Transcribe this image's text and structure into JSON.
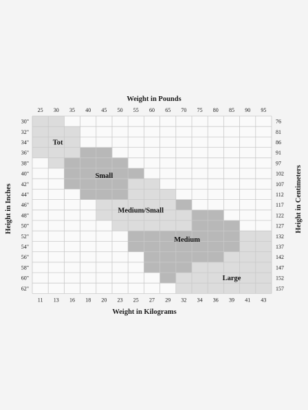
{
  "chart_data": {
    "type": "heatmap",
    "top_axis_title": "Weight in Pounds",
    "bottom_axis_title": "Weight in Kilograms",
    "left_axis_title": "Height in Inches",
    "right_axis_title": "Height in Centimeters",
    "pounds": [
      "25",
      "30",
      "35",
      "40",
      "45",
      "50",
      "55",
      "60",
      "65",
      "70",
      "75",
      "80",
      "85",
      "90",
      "95"
    ],
    "kilograms": [
      "11",
      "13",
      "16",
      "18",
      "20",
      "23",
      "25",
      "27",
      "29",
      "32",
      "34",
      "36",
      "39",
      "41",
      "43"
    ],
    "inches": [
      "30\"",
      "32\"",
      "34\"",
      "36\"",
      "38\"",
      "40\"",
      "42\"",
      "44\"",
      "46\"",
      "48\"",
      "50\"",
      "52\"",
      "54\"",
      "56\"",
      "58\"",
      "60\"",
      "62\""
    ],
    "centimeters": [
      "76",
      "81",
      "86",
      "91",
      "97",
      "102",
      "107",
      "112",
      "117",
      "122",
      "127",
      "132",
      "137",
      "142",
      "147",
      "152",
      "157"
    ],
    "colors": {
      "light": "#dcdcdc",
      "dark": "#b8b8b8",
      "grid": "#c9c9c9",
      "background": "#f4f4f4",
      "plot_background": "#fafafa"
    },
    "sizes": [
      {
        "name": "Tot",
        "shade": "light",
        "cells": [
          [
            0,
            0
          ],
          [
            0,
            1
          ],
          [
            1,
            0
          ],
          [
            1,
            1
          ],
          [
            1,
            2
          ],
          [
            2,
            0
          ],
          [
            2,
            1
          ],
          [
            2,
            2
          ],
          [
            3,
            0
          ],
          [
            3,
            1
          ],
          [
            3,
            2
          ],
          [
            4,
            1
          ],
          [
            4,
            2
          ]
        ]
      },
      {
        "name": "Small",
        "shade": "dark",
        "cells": [
          [
            3,
            3
          ],
          [
            3,
            4
          ],
          [
            4,
            2
          ],
          [
            4,
            3
          ],
          [
            4,
            4
          ],
          [
            4,
            5
          ],
          [
            5,
            2
          ],
          [
            5,
            3
          ],
          [
            5,
            4
          ],
          [
            5,
            5
          ],
          [
            5,
            6
          ],
          [
            6,
            2
          ],
          [
            6,
            3
          ],
          [
            6,
            4
          ],
          [
            6,
            5
          ],
          [
            6,
            6
          ],
          [
            7,
            3
          ],
          [
            7,
            4
          ],
          [
            7,
            5
          ]
        ]
      },
      {
        "name": "Medium/Small",
        "shade": "light",
        "cells": [
          [
            6,
            6
          ],
          [
            6,
            7
          ],
          [
            7,
            6
          ],
          [
            7,
            7
          ],
          [
            7,
            8
          ],
          [
            8,
            4
          ],
          [
            8,
            5
          ],
          [
            8,
            6
          ],
          [
            8,
            7
          ],
          [
            8,
            8
          ],
          [
            9,
            4
          ],
          [
            9,
            5
          ],
          [
            9,
            6
          ],
          [
            9,
            7
          ],
          [
            9,
            8
          ],
          [
            9,
            9
          ],
          [
            10,
            5
          ],
          [
            10,
            6
          ],
          [
            10,
            7
          ],
          [
            10,
            8
          ],
          [
            10,
            9
          ]
        ]
      },
      {
        "name": "Medium",
        "shade": "dark",
        "cells": [
          [
            8,
            9
          ],
          [
            9,
            10
          ],
          [
            9,
            11
          ],
          [
            10,
            10
          ],
          [
            10,
            11
          ],
          [
            10,
            12
          ],
          [
            11,
            6
          ],
          [
            11,
            7
          ],
          [
            11,
            8
          ],
          [
            11,
            9
          ],
          [
            11,
            10
          ],
          [
            11,
            11
          ],
          [
            11,
            12
          ],
          [
            12,
            6
          ],
          [
            12,
            7
          ],
          [
            12,
            8
          ],
          [
            12,
            9
          ],
          [
            12,
            10
          ],
          [
            12,
            11
          ],
          [
            12,
            12
          ],
          [
            13,
            7
          ],
          [
            13,
            8
          ],
          [
            13,
            9
          ],
          [
            13,
            10
          ],
          [
            13,
            11
          ],
          [
            14,
            7
          ],
          [
            14,
            8
          ],
          [
            14,
            9
          ],
          [
            15,
            8
          ]
        ]
      },
      {
        "name": "Large",
        "shade": "light",
        "cells": [
          [
            11,
            13
          ],
          [
            11,
            14
          ],
          [
            12,
            13
          ],
          [
            12,
            14
          ],
          [
            13,
            12
          ],
          [
            13,
            13
          ],
          [
            13,
            14
          ],
          [
            14,
            10
          ],
          [
            14,
            11
          ],
          [
            14,
            12
          ],
          [
            14,
            13
          ],
          [
            14,
            14
          ],
          [
            15,
            9
          ],
          [
            15,
            10
          ],
          [
            15,
            11
          ],
          [
            15,
            12
          ],
          [
            15,
            13
          ],
          [
            15,
            14
          ],
          [
            16,
            9
          ],
          [
            16,
            10
          ],
          [
            16,
            11
          ],
          [
            16,
            12
          ],
          [
            16,
            13
          ],
          [
            16,
            14
          ]
        ]
      }
    ]
  }
}
